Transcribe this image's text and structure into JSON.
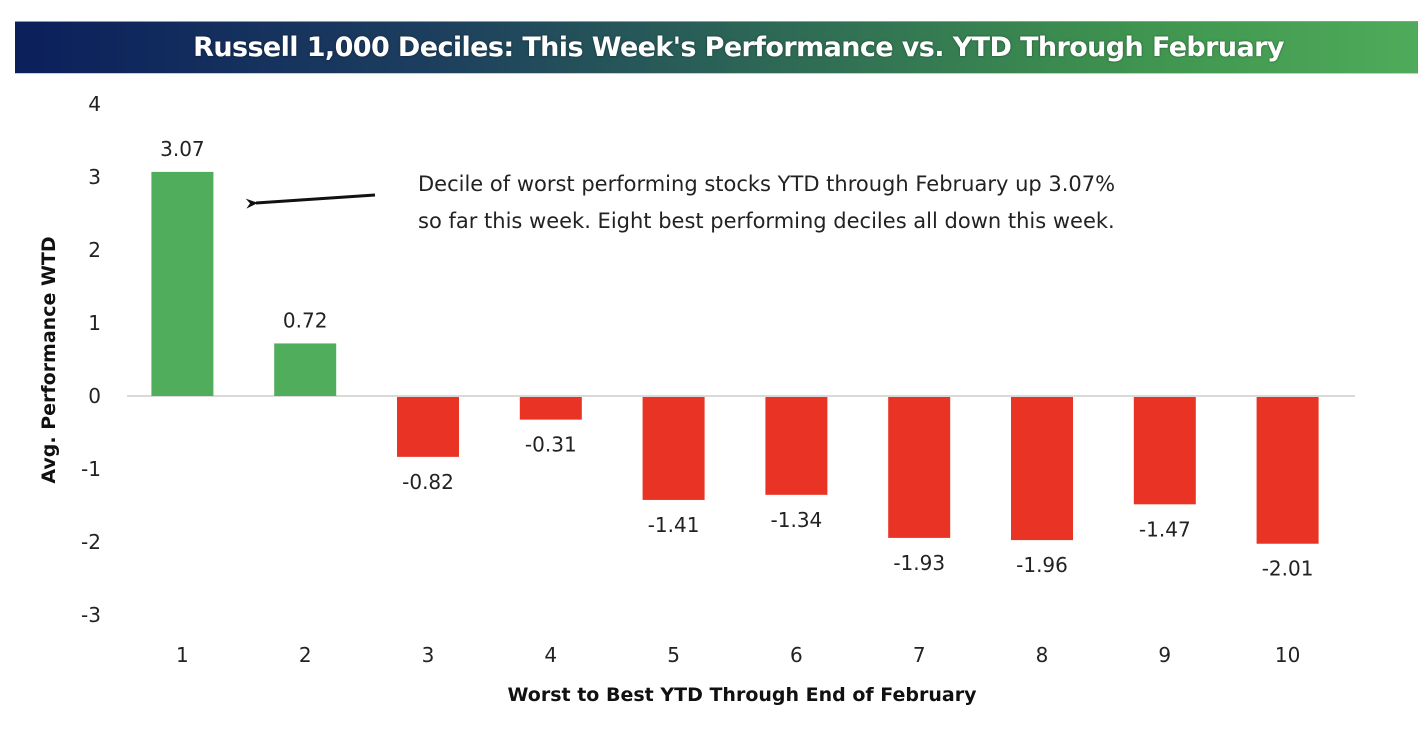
{
  "title": "Russell 1,000 Deciles: This Week's Performance vs. YTD Through February",
  "colors": {
    "positive": "#4fad5b",
    "negative": "#e93324",
    "title_start": "#0b1f5c",
    "title_end": "#4fab5a"
  },
  "chart_data": {
    "type": "bar",
    "title": "Russell 1,000 Deciles: This Week's Performance vs. YTD Through February",
    "xlabel": "Worst to Best YTD Through End of February",
    "ylabel": "Avg. Performance WTD",
    "categories": [
      "1",
      "2",
      "3",
      "4",
      "5",
      "6",
      "7",
      "8",
      "9",
      "10"
    ],
    "values": [
      3.07,
      0.72,
      -0.82,
      -0.31,
      -1.41,
      -1.34,
      -1.93,
      -1.96,
      -1.47,
      -2.01
    ],
    "value_labels": [
      "3.07",
      "0.72",
      "-0.82",
      "-0.31",
      "-1.41",
      "-1.34",
      "-1.93",
      "-1.96",
      "-1.47",
      "-2.01"
    ],
    "ylim": [
      -3,
      4
    ],
    "yticks": [
      "4",
      "3",
      "2",
      "1",
      "0",
      "-1",
      "-2",
      "-3"
    ],
    "ytick_values": [
      4,
      3,
      2,
      1,
      0,
      -1,
      -2,
      -3
    ],
    "grid": false,
    "legend": "none",
    "annotation": {
      "lines": [
        "Decile of worst performing stocks YTD through February up 3.07%",
        "so far this week.  Eight best performing deciles all down this week."
      ],
      "points_to_category": "1"
    }
  }
}
